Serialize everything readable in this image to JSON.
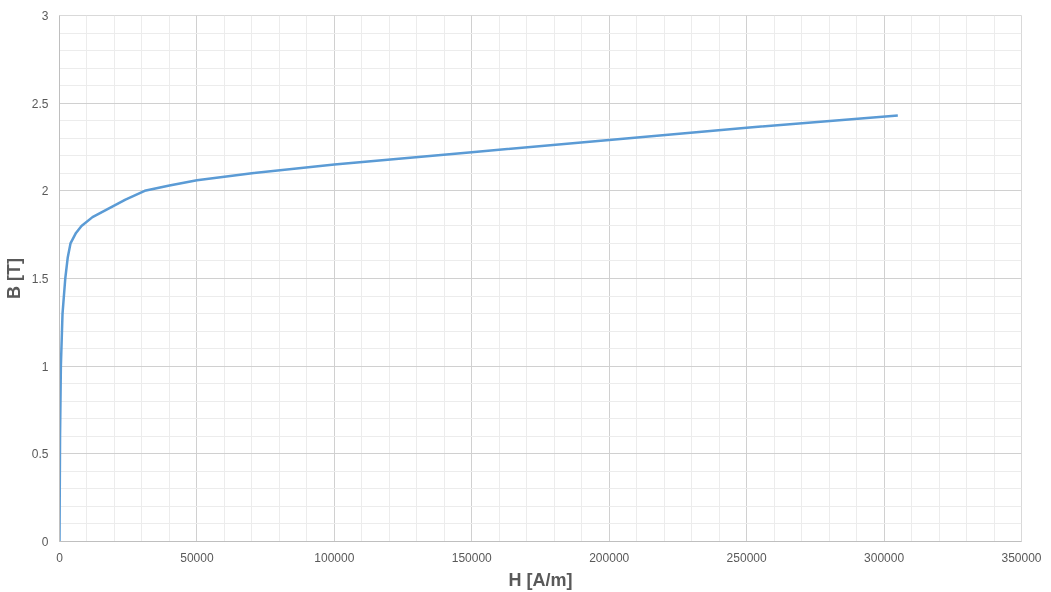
{
  "chart_data": {
    "type": "line",
    "xlabel": "H [A/m]",
    "ylabel": "B [T]",
    "x": [
      0,
      200,
      500,
      1100,
      2100,
      3000,
      4000,
      6000,
      8000,
      12000,
      18000,
      24000,
      31000,
      40000,
      50000,
      70000,
      100000,
      150000,
      200000,
      250000,
      305000
    ],
    "series": [
      {
        "color": "#5b9bd5",
        "values": [
          0,
          0.6,
          1.0,
          1.3,
          1.5,
          1.62,
          1.7,
          1.76,
          1.8,
          1.85,
          1.9,
          1.95,
          2.0,
          2.03,
          2.06,
          2.1,
          2.15,
          2.22,
          2.29,
          2.36,
          2.43
        ]
      }
    ],
    "xlim": [
      0,
      350000
    ],
    "xticks": [
      0,
      50000,
      100000,
      150000,
      200000,
      250000,
      300000,
      350000
    ],
    "ylim": [
      0,
      3
    ],
    "yticks": [
      0,
      0.5,
      1,
      1.5,
      2,
      2.5,
      3
    ],
    "grid": true,
    "marker": "none",
    "line_style": "solid"
  }
}
